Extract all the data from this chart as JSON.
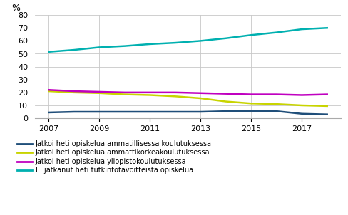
{
  "years": [
    2007,
    2008,
    2009,
    2010,
    2011,
    2012,
    2013,
    2014,
    2015,
    2016,
    2017,
    2018
  ],
  "ammatillinen": [
    4.5,
    5.0,
    5.0,
    5.0,
    5.0,
    5.0,
    5.0,
    5.5,
    5.5,
    5.5,
    3.5,
    3.0
  ],
  "ammattikorkeakoulu": [
    21.0,
    20.0,
    19.5,
    18.5,
    18.0,
    17.0,
    15.5,
    13.0,
    11.5,
    11.0,
    10.0,
    9.5
  ],
  "yliopisto": [
    22.0,
    21.0,
    20.5,
    20.0,
    20.0,
    20.0,
    19.5,
    19.0,
    18.5,
    18.5,
    18.0,
    18.5
  ],
  "ei_jatkanut": [
    51.5,
    53.0,
    55.0,
    56.0,
    57.5,
    58.5,
    60.0,
    62.0,
    64.5,
    66.5,
    69.0,
    70.0
  ],
  "colors": {
    "ammatillinen": "#1f4e79",
    "ammattikorkeakoulu": "#c8d400",
    "yliopisto": "#c000c0",
    "ei_jatkanut": "#00b0b0"
  },
  "legend_labels": [
    "Jatkoi heti opiskelua ammatillisessa koulutuksessa",
    "Jatkoi heti opiskelua ammattikorkeakoulutuksessa",
    "Jatkoi heti opiskelua yliopistokoulutuksessa",
    "Ei jatkanut heti tutkintotavoitteista opiskelua"
  ],
  "ylabel": "%",
  "ylim": [
    0,
    80
  ],
  "yticks": [
    0,
    10,
    20,
    30,
    40,
    50,
    60,
    70,
    80
  ],
  "xticks": [
    2007,
    2009,
    2011,
    2013,
    2015,
    2017
  ],
  "background_color": "#ffffff",
  "grid_color": "#c8c8c8",
  "line_width": 1.8
}
